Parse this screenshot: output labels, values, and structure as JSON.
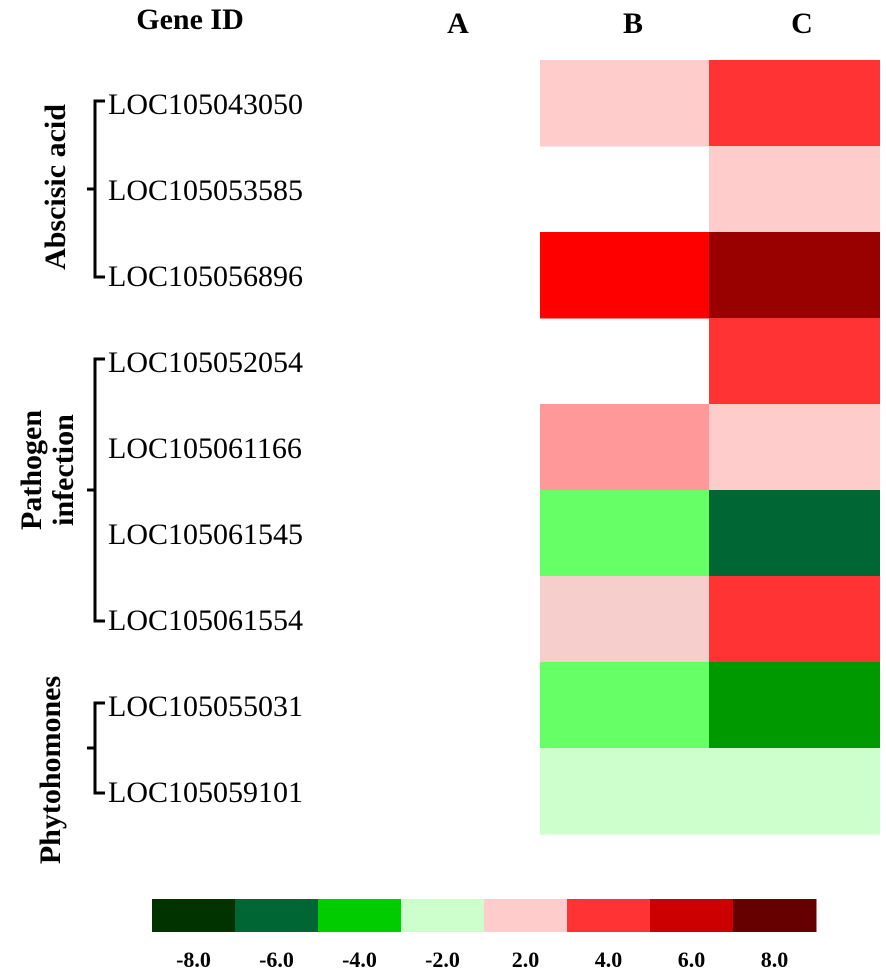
{
  "chart_data": {
    "type": "heatmap",
    "row_header": "Gene ID",
    "columns": [
      "A",
      "B",
      "C"
    ],
    "rows": [
      {
        "gene": "LOC105043050",
        "values": [
          null,
          2.0,
          4.0
        ]
      },
      {
        "gene": "LOC105053585",
        "values": [
          null,
          null,
          2.0
        ]
      },
      {
        "gene": "LOC105056896",
        "values": [
          null,
          5.0,
          8.0
        ]
      },
      {
        "gene": "LOC105052054",
        "values": [
          null,
          null,
          4.0
        ]
      },
      {
        "gene": "LOC105061166",
        "values": [
          null,
          3.0,
          2.0
        ]
      },
      {
        "gene": "LOC105061545",
        "values": [
          null,
          -3.0,
          -6.0
        ]
      },
      {
        "gene": "LOC105061554",
        "values": [
          null,
          2.0,
          4.0
        ]
      },
      {
        "gene": "LOC105055031",
        "values": [
          null,
          -3.0,
          -5.0
        ]
      },
      {
        "gene": "LOC105059101",
        "values": [
          null,
          -2.0,
          -2.0
        ]
      }
    ],
    "groups": [
      {
        "label": "Abscisic acid",
        "first_row": 0,
        "last_row": 2
      },
      {
        "label": "Pathogen\ninfection",
        "first_row": 3,
        "last_row": 6
      },
      {
        "label": "Phytohomones",
        "first_row": 7,
        "last_row": 8
      }
    ],
    "legend": {
      "ticks": [
        "-8.0",
        "-6.0",
        "-4.0",
        "-2.0",
        "2.0",
        "4.0",
        "6.0",
        "8.0"
      ],
      "colors": [
        "#003300",
        "#006633",
        "#00cc00",
        "#ccffcc",
        "#ffcccc",
        "#ff3333",
        "#cc0000",
        "#660000"
      ]
    },
    "cell_colors": [
      [
        null,
        "#ffcccc",
        "#ff3333"
      ],
      [
        null,
        null,
        "#ffcccc"
      ],
      [
        null,
        "#ff0000",
        "#990000"
      ],
      [
        null,
        null,
        "#ff3333"
      ],
      [
        null,
        "#ff9999",
        "#ffcccc"
      ],
      [
        null,
        "#66ff66",
        "#006633"
      ],
      [
        null,
        "#f6cfcc",
        "#ff3333"
      ],
      [
        null,
        "#66ff66",
        "#009900"
      ],
      [
        null,
        "#ccffcc",
        "#ccffcc"
      ]
    ]
  }
}
